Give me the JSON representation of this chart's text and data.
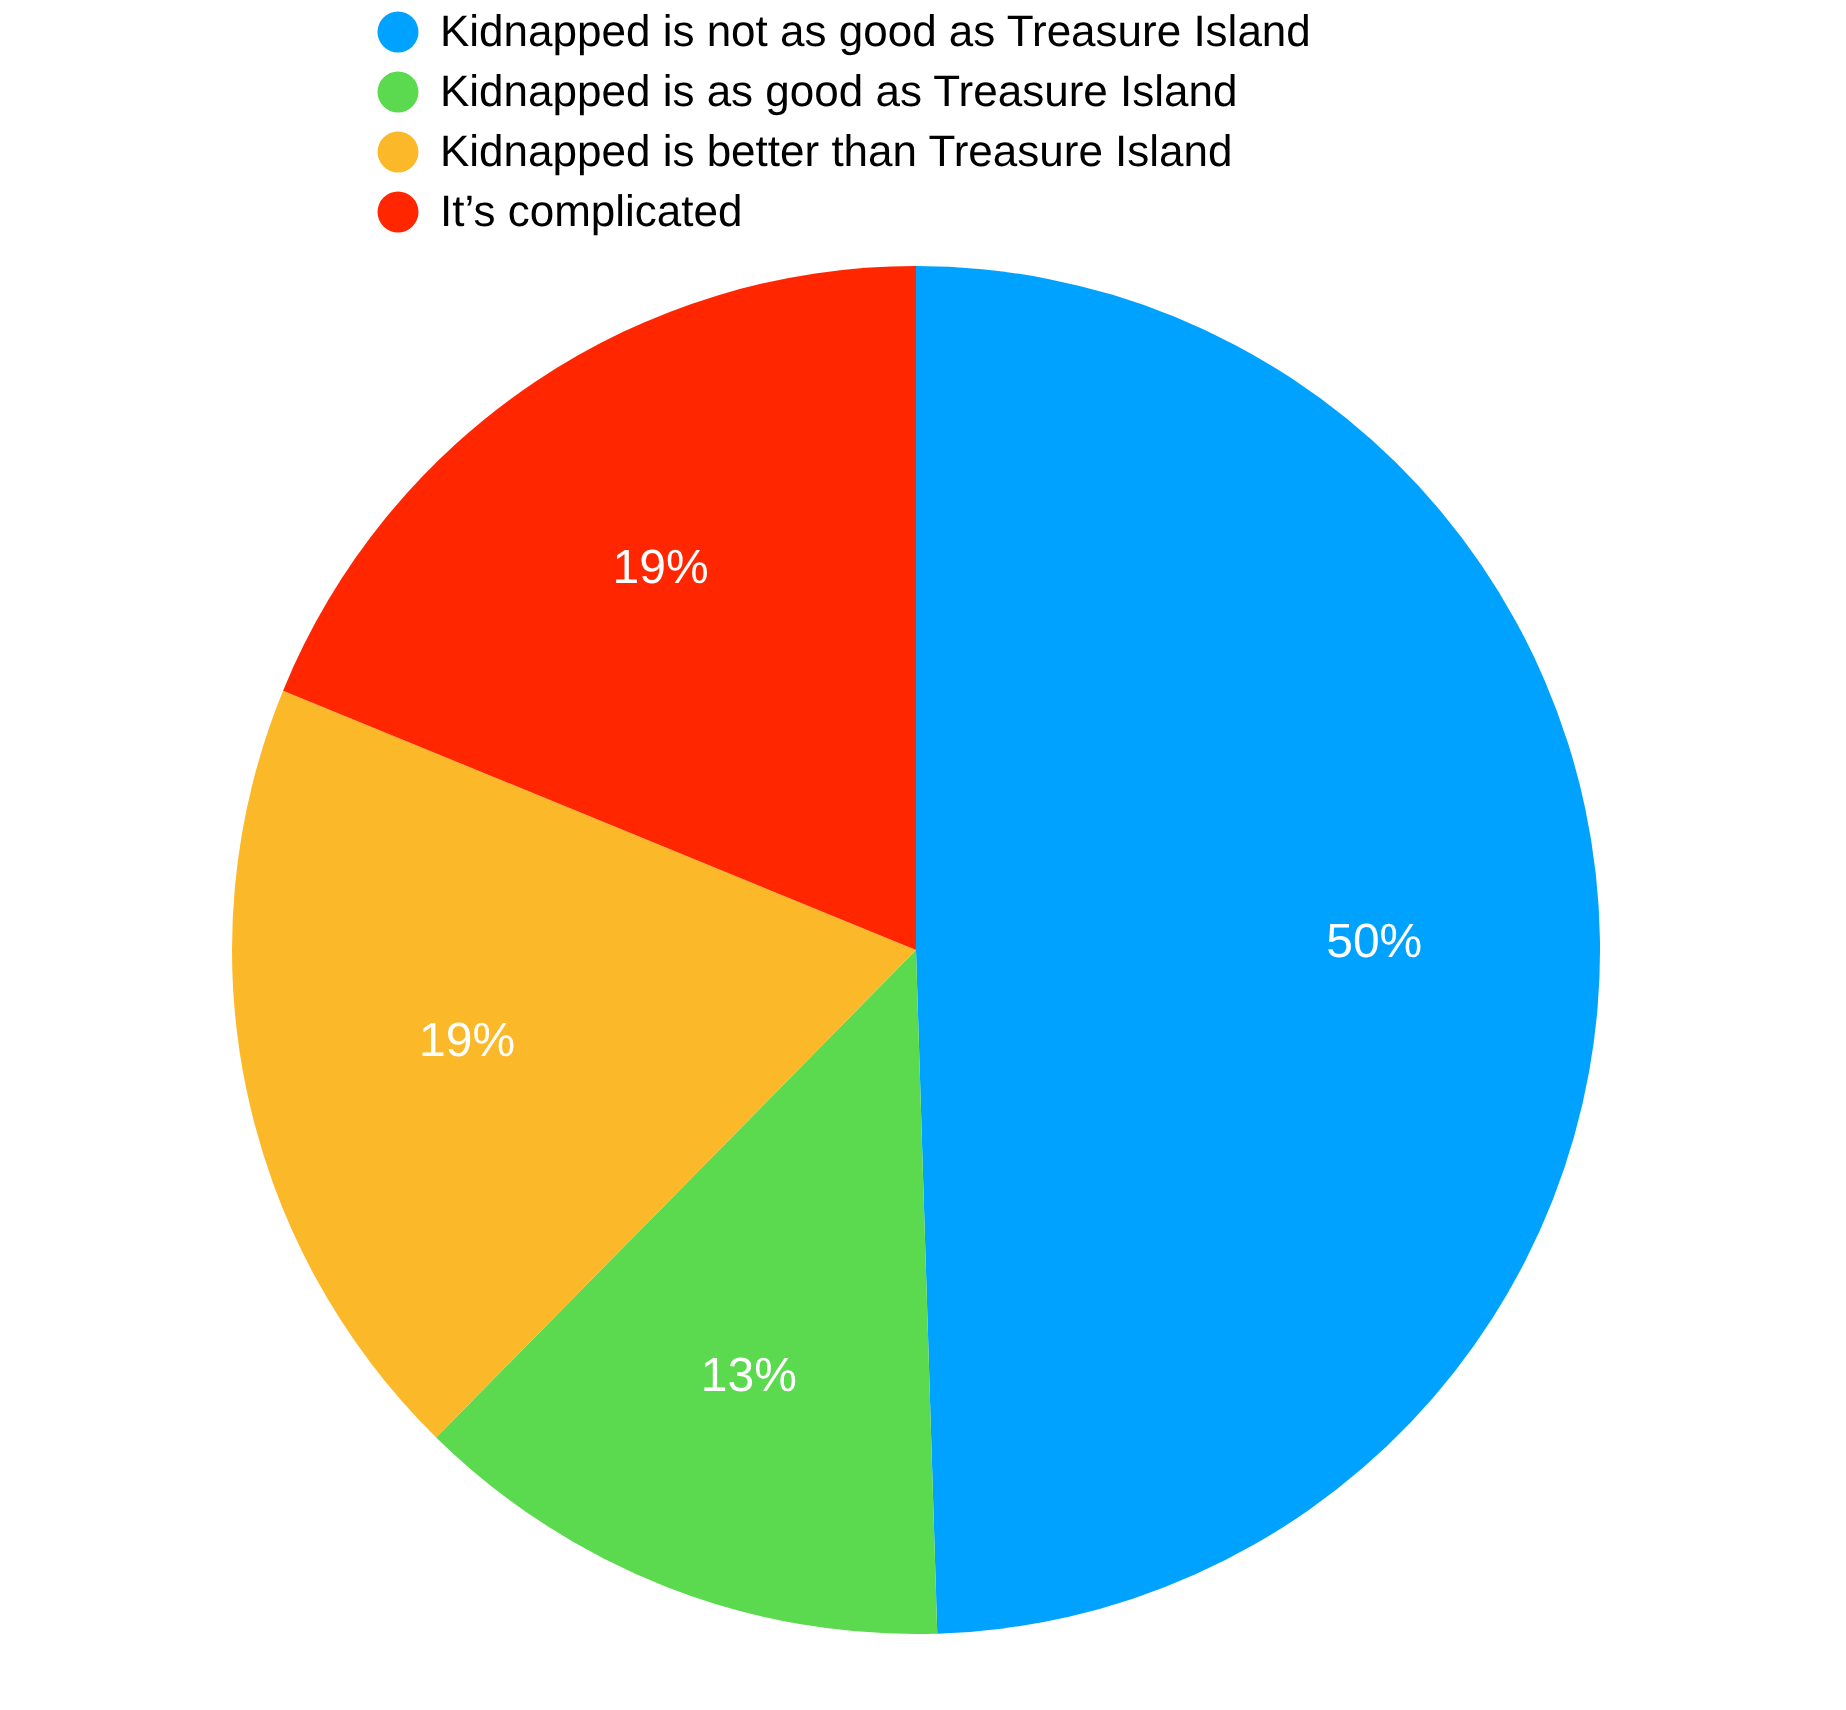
{
  "chart_data": {
    "type": "pie",
    "categories": [
      "Kidnapped is not as good as Treasure Island",
      "Kidnapped is as good as Treasure Island",
      "Kidnapped is better than Treasure Island",
      "It’s complicated"
    ],
    "values": [
      50,
      13,
      19,
      19
    ],
    "colors": [
      "#00a2ff",
      "#5bd94f",
      "#fbb92a",
      "#ff2600"
    ],
    "value_labels": [
      "50%",
      "13%",
      "19%",
      "19%"
    ],
    "legend": "top"
  }
}
